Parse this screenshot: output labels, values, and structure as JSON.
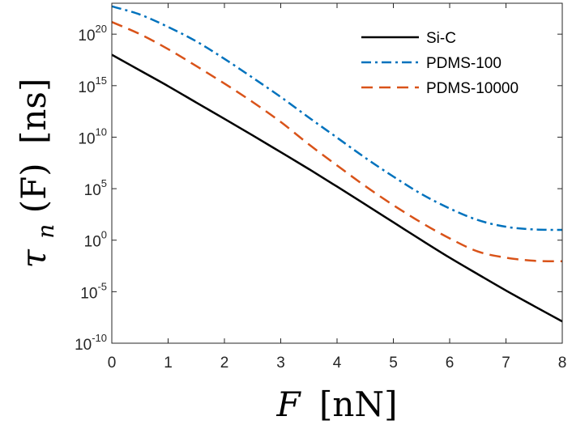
{
  "chart_data": {
    "type": "line",
    "xlabel": {
      "var": "F",
      "units": "[nN]"
    },
    "ylabel": {
      "var": "τ",
      "sub": "n",
      "arg": "(F)",
      "units": "[ns]"
    },
    "xlim": [
      0,
      8
    ],
    "ylim": [
      1e-10,
      1e+23
    ],
    "yscale": "log",
    "x_ticks": [
      0,
      1,
      2,
      3,
      4,
      5,
      6,
      7,
      8
    ],
    "x_tick_labels": [
      "0",
      "1",
      "2",
      "3",
      "4",
      "5",
      "6",
      "7",
      "8"
    ],
    "y_ticks": [
      {
        "value": 1e-10,
        "base": "10",
        "exp": "-10"
      },
      {
        "value": 1e-05,
        "base": "10",
        "exp": "-5"
      },
      {
        "value": 1,
        "base": "10",
        "exp": "0"
      },
      {
        "value": 100000.0,
        "base": "10",
        "exp": "5"
      },
      {
        "value": 10000000000.0,
        "base": "10",
        "exp": "10"
      },
      {
        "value": 1000000000000000.0,
        "base": "10",
        "exp": "15"
      },
      {
        "value": 1e+20,
        "base": "10",
        "exp": "20"
      }
    ],
    "grid": false,
    "legend_position": "top-right",
    "series": [
      {
        "name": "Si-C",
        "color": "#000000",
        "dash": "solid",
        "x": [
          0,
          0.5,
          1,
          1.5,
          2,
          2.5,
          3,
          3.5,
          4,
          4.5,
          5,
          5.5,
          6,
          6.5,
          7,
          7.5,
          8
        ],
        "y": [
          1e+18,
          3e+16,
          900000000000000.0,
          23000000000000.0,
          600000000000.0,
          15000000000.0,
          350000000.0,
          8000000.0,
          160000.0,
          3000.0,
          55,
          1,
          0.02,
          0.0005,
          1.3e-05,
          4e-07,
          1.3e-08
        ]
      },
      {
        "name": "PDMS-100",
        "color": "#0072BD",
        "dash": "dashdot",
        "x": [
          0,
          0.5,
          1,
          1.5,
          2,
          2.5,
          3,
          3.5,
          4,
          4.5,
          5,
          5.5,
          6,
          6.5,
          7,
          7.5,
          8
        ],
        "y": [
          5e+22,
          8e+21,
          5e+20,
          2e+19,
          4e+17,
          6000000000000000.0,
          80000000000000.0,
          800000000000.0,
          9000000000.0,
          100000000.0,
          1500000.0,
          30000.0,
          1200.0,
          90,
          20,
          11,
          10
        ]
      },
      {
        "name": "PDMS-10000",
        "color": "#D95319",
        "dash": "dashed",
        "x": [
          0,
          0.5,
          1,
          1.5,
          2,
          2.5,
          3,
          3.5,
          4,
          4.5,
          5,
          5.5,
          6,
          6.5,
          7,
          7.5,
          8
        ],
        "y": [
          1.5e+21,
          1e+20,
          3.5e+18,
          8e+16,
          1600000000000000.0,
          26000000000000.0,
          300000000000.0,
          2000000000.0,
          18000000.0,
          180000.0,
          2500.0,
          50,
          1.5,
          0.08,
          0.02,
          0.01,
          0.009
        ]
      }
    ]
  }
}
